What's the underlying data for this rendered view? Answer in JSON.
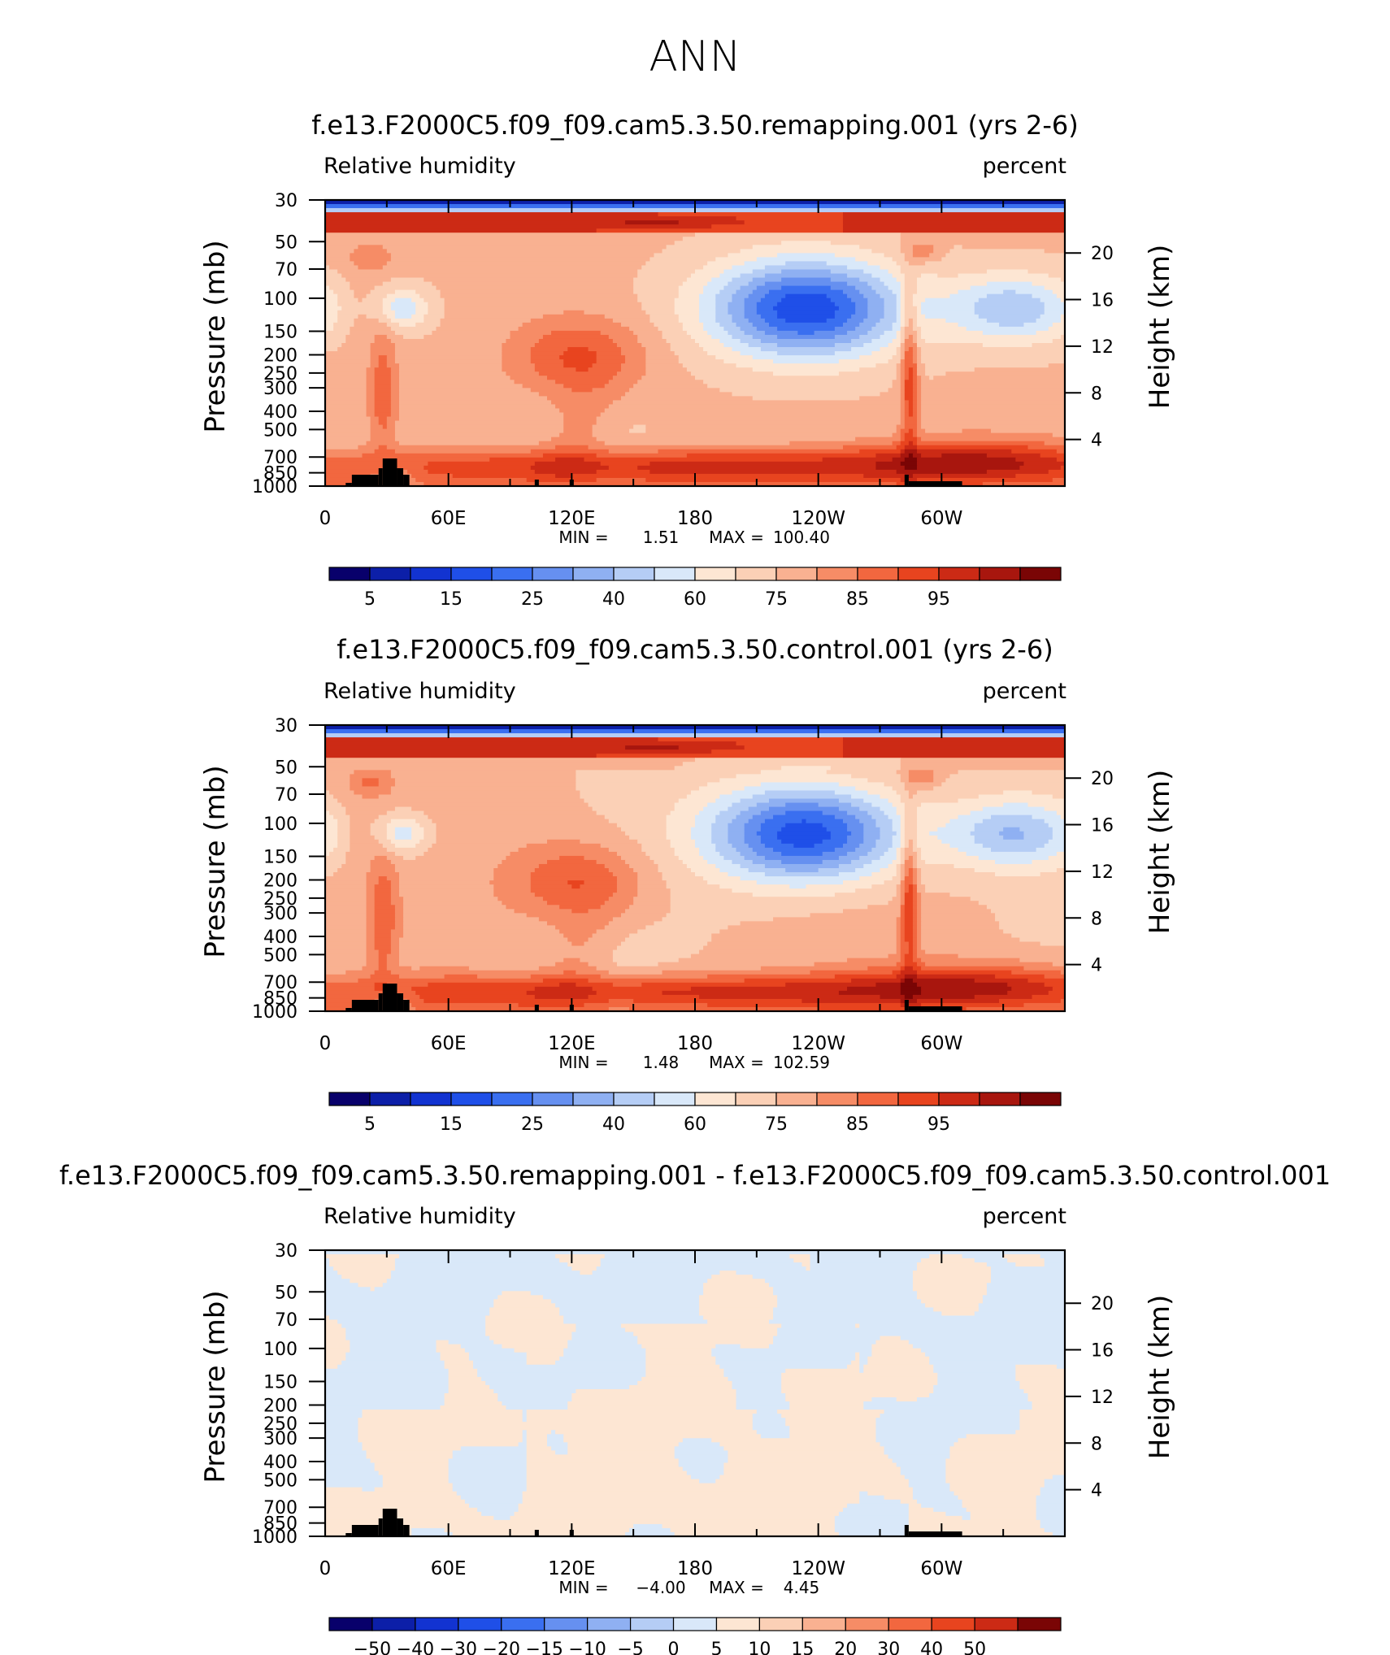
{
  "title": "ANN",
  "colors": {
    "humidity_levels": [
      "#08006b",
      "#0c1fa8",
      "#1233d1",
      "#1f4fe8",
      "#3a6ff0",
      "#6690f0",
      "#8fb0f2",
      "#b5cdf5",
      "#d9e8f9",
      "#fde6d3",
      "#fbd0b6",
      "#f9b191",
      "#f68c66",
      "#f2673f",
      "#e8441f",
      "#cc2a15",
      "#a8160e",
      "#7a0505"
    ],
    "difference_levels": [
      "#08006b",
      "#0c1fa8",
      "#1233d1",
      "#1f4fe8",
      "#3a6ff0",
      "#6690f0",
      "#8fb0f2",
      "#b5cdf5",
      "#d9e8f9",
      "#fde6d3",
      "#fbd0b6",
      "#f9b191",
      "#f68c66",
      "#f2673f",
      "#e8441f",
      "#cc2a15",
      "#7a0505"
    ],
    "terrain": "#000000"
  },
  "panels": [
    {
      "title": "f.e13.F2000C5.f09_f09.cam5.3.50.remapping.001 (yrs 2-6)",
      "left_label": "Relative  humidity",
      "right_label": "percent",
      "y_axis_label": "Pressure  (mb)",
      "y2_axis_label": "Height  (km)",
      "stats": {
        "min_label": "MIN  =",
        "min_value": "1.51",
        "max_label": "MAX  =",
        "max_value": "100.40"
      },
      "colorbar_labels": [
        "5",
        "15",
        "25",
        "40",
        "60",
        "75",
        "85",
        "95"
      ]
    },
    {
      "title": "f.e13.F2000C5.f09_f09.cam5.3.50.control.001 (yrs 2-6)",
      "left_label": "Relative  humidity",
      "right_label": "percent",
      "y_axis_label": "Pressure  (mb)",
      "y2_axis_label": "Height  (km)",
      "stats": {
        "min_label": "MIN  =",
        "min_value": "1.48",
        "max_label": "MAX  =",
        "max_value": "102.59"
      },
      "colorbar_labels": [
        "5",
        "15",
        "25",
        "40",
        "60",
        "75",
        "85",
        "95"
      ]
    },
    {
      "title": "f.e13.F2000C5.f09_f09.cam5.3.50.remapping.001 - f.e13.F2000C5.f09_f09.cam5.3.50.control.001",
      "left_label": "Relative  humidity",
      "right_label": "percent",
      "y_axis_label": "Pressure  (mb)",
      "y2_axis_label": "Height  (km)",
      "stats": {
        "min_label": "MIN  =",
        "min_value": "−4.00",
        "max_label": "MAX  =",
        "max_value": "4.45"
      },
      "colorbar_labels": [
        "−50",
        "−40",
        "−30",
        "−20",
        "−15",
        "−10",
        "−5",
        "0",
        "5",
        "10",
        "15",
        "20",
        "30",
        "40",
        "50"
      ]
    }
  ],
  "chart_data": [
    {
      "type": "heatmap",
      "title": "f.e13.F2000C5.f09_f09.cam5.3.50.remapping.001 (yrs 2-6)",
      "variable": "Relative  humidity",
      "units": "percent",
      "ylabel": "Pressure  (mb)",
      "y2label": "Height  (km)",
      "x_tick_labels": [
        "0",
        "60E",
        "120E",
        "180",
        "120W",
        "60W"
      ],
      "x_ticks_deg": [
        0,
        60,
        120,
        180,
        240,
        300
      ],
      "xlim_deg": [
        0,
        360
      ],
      "y_tick_labels": [
        "30",
        "50",
        "70",
        "100",
        "150",
        "200",
        "250",
        "300",
        "400",
        "500",
        "700",
        "850",
        "1000"
      ],
      "y_ticks_mb": [
        30,
        50,
        70,
        100,
        150,
        200,
        250,
        300,
        400,
        500,
        700,
        850,
        1000
      ],
      "ylim_mb": [
        1000,
        30
      ],
      "y_scale": "log",
      "y2_tick_labels": [
        "20",
        "16",
        "12",
        "8",
        "4"
      ],
      "y2_ticks_km": [
        20,
        16,
        12,
        8,
        4
      ],
      "contour_levels": [
        5,
        10,
        15,
        20,
        25,
        30,
        40,
        50,
        60,
        70,
        75,
        80,
        85,
        90,
        95,
        100
      ],
      "min": 1.51,
      "max": 100.4,
      "colorbar_labels": [
        "5",
        "15",
        "25",
        "40",
        "60",
        "75",
        "85",
        "95"
      ]
    },
    {
      "type": "heatmap",
      "title": "f.e13.F2000C5.f09_f09.cam5.3.50.control.001 (yrs 2-6)",
      "variable": "Relative  humidity",
      "units": "percent",
      "ylabel": "Pressure  (mb)",
      "y2label": "Height  (km)",
      "x_tick_labels": [
        "0",
        "60E",
        "120E",
        "180",
        "120W",
        "60W"
      ],
      "x_ticks_deg": [
        0,
        60,
        120,
        180,
        240,
        300
      ],
      "xlim_deg": [
        0,
        360
      ],
      "y_tick_labels": [
        "30",
        "50",
        "70",
        "100",
        "150",
        "200",
        "250",
        "300",
        "400",
        "500",
        "700",
        "850",
        "1000"
      ],
      "y_ticks_mb": [
        30,
        50,
        70,
        100,
        150,
        200,
        250,
        300,
        400,
        500,
        700,
        850,
        1000
      ],
      "ylim_mb": [
        1000,
        30
      ],
      "y_scale": "log",
      "y2_tick_labels": [
        "20",
        "16",
        "12",
        "8",
        "4"
      ],
      "y2_ticks_km": [
        20,
        16,
        12,
        8,
        4
      ],
      "contour_levels": [
        5,
        10,
        15,
        20,
        25,
        30,
        40,
        50,
        60,
        70,
        75,
        80,
        85,
        90,
        95,
        100
      ],
      "min": 1.48,
      "max": 102.59,
      "colorbar_labels": [
        "5",
        "15",
        "25",
        "40",
        "60",
        "75",
        "85",
        "95"
      ]
    },
    {
      "type": "heatmap",
      "title": "f.e13.F2000C5.f09_f09.cam5.3.50.remapping.001 - f.e13.F2000C5.f09_f09.cam5.3.50.control.001",
      "variable": "Relative  humidity",
      "units": "percent",
      "ylabel": "Pressure  (mb)",
      "y2label": "Height  (km)",
      "x_tick_labels": [
        "0",
        "60E",
        "120E",
        "180",
        "120W",
        "60W"
      ],
      "x_ticks_deg": [
        0,
        60,
        120,
        180,
        240,
        300
      ],
      "xlim_deg": [
        0,
        360
      ],
      "y_tick_labels": [
        "30",
        "50",
        "70",
        "100",
        "150",
        "200",
        "250",
        "300",
        "400",
        "500",
        "700",
        "850",
        "1000"
      ],
      "y_ticks_mb": [
        30,
        50,
        70,
        100,
        150,
        200,
        250,
        300,
        400,
        500,
        700,
        850,
        1000
      ],
      "ylim_mb": [
        1000,
        30
      ],
      "y_scale": "log",
      "y2_tick_labels": [
        "20",
        "16",
        "12",
        "8",
        "4"
      ],
      "y2_ticks_km": [
        20,
        16,
        12,
        8,
        4
      ],
      "contour_levels": [
        -50,
        -40,
        -30,
        -20,
        -15,
        -10,
        -5,
        0,
        5,
        10,
        15,
        20,
        30,
        40,
        50
      ],
      "min": -4.0,
      "max": 4.45,
      "colorbar_labels": [
        "−50",
        "−40",
        "−30",
        "−20",
        "−15",
        "−10",
        "−5",
        "0",
        "5",
        "10",
        "15",
        "20",
        "30",
        "40",
        "50"
      ]
    }
  ]
}
